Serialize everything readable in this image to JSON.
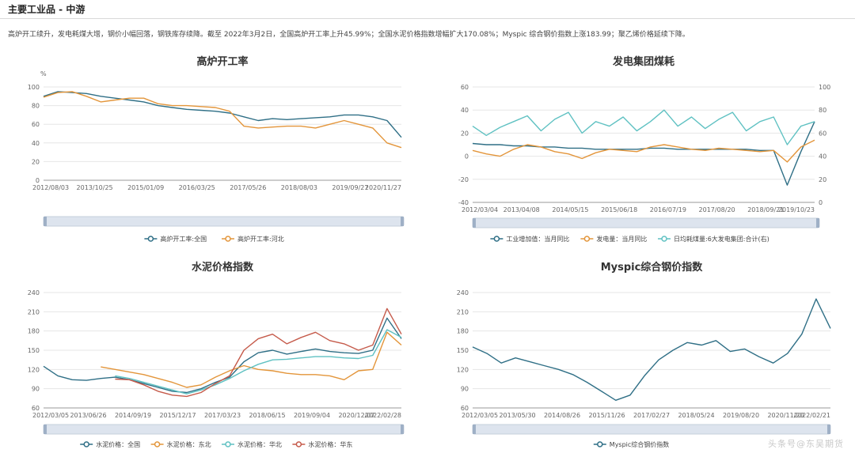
{
  "header": {
    "title": "主要工业品 - 中游"
  },
  "summary": "高炉开工续升，发电耗煤大增，钢价小幅回落，钢铁库存续降。截至 2022年3月2日，全国高炉开工率上升45.99%；全国水泥价格指数增幅扩大170.08%；Myspic 综合钢价指数上涨183.99；聚乙烯价格延续下降。",
  "watermark": "头条号@东吴期货",
  "colors": {
    "blue": "#2f6f86",
    "orange": "#e3953a",
    "cyan": "#5fc1c2",
    "red": "#c55a4a"
  },
  "chart_data": [
    {
      "type": "line",
      "title": "高炉开工率",
      "ylabel": "%",
      "ylim": [
        0,
        100
      ],
      "yticks": [
        0,
        20,
        40,
        60,
        80,
        100
      ],
      "xticks": [
        "2012/08/03",
        "2013/10/25",
        "2015/01/09",
        "2016/03/25",
        "2017/05/26",
        "2018/08/03",
        "2019/09/27",
        "2020/11/27"
      ],
      "x": [
        0,
        4,
        8,
        12,
        16,
        20,
        24,
        28,
        32,
        36,
        40,
        44,
        48,
        52,
        56,
        60,
        64,
        68,
        72,
        76,
        80,
        84,
        88,
        92,
        96,
        100
      ],
      "series": [
        {
          "name": "高炉开工率:全国",
          "color": "blue",
          "values": [
            90,
            95,
            94,
            93,
            90,
            88,
            86,
            84,
            80,
            78,
            76,
            75,
            74,
            72,
            68,
            64,
            66,
            65,
            66,
            67,
            68,
            70,
            70,
            68,
            64,
            46
          ]
        },
        {
          "name": "高炉开工率:河北",
          "color": "orange",
          "values": [
            89,
            94,
            95,
            90,
            84,
            86,
            88,
            88,
            82,
            80,
            80,
            79,
            78,
            74,
            58,
            56,
            57,
            58,
            58,
            56,
            60,
            64,
            60,
            56,
            40,
            35
          ]
        }
      ]
    },
    {
      "type": "line",
      "title": "发电集团煤耗",
      "ylim": [
        -40,
        60
      ],
      "yticks": [
        -40,
        -20,
        0,
        20,
        40,
        60
      ],
      "y2lim": [
        0,
        100
      ],
      "y2ticks": [
        0,
        20,
        40,
        60,
        80,
        100
      ],
      "xticks": [
        "2012/03/04",
        "2013/04/08",
        "2014/05/15",
        "2015/06/18",
        "2016/07/19",
        "2017/08/20",
        "2018/09/21",
        "2019/10/23"
      ],
      "x": [
        0,
        4,
        8,
        12,
        16,
        20,
        24,
        28,
        32,
        36,
        40,
        44,
        48,
        52,
        56,
        60,
        64,
        68,
        72,
        76,
        80,
        84,
        88,
        92,
        96,
        100
      ],
      "series": [
        {
          "name": "工业增加值：当月同比",
          "color": "blue",
          "axis": "left",
          "values": [
            11,
            10,
            10,
            9,
            9,
            8,
            8,
            7,
            7,
            6,
            6,
            6,
            6,
            7,
            7,
            6,
            6,
            6,
            6,
            6,
            6,
            5,
            5,
            -25,
            4,
            30
          ]
        },
        {
          "name": "发电量：当月同比",
          "color": "orange",
          "axis": "left",
          "values": [
            5,
            2,
            0,
            6,
            10,
            8,
            4,
            2,
            -2,
            3,
            6,
            5,
            4,
            8,
            10,
            8,
            6,
            5,
            7,
            6,
            5,
            4,
            5,
            -5,
            8,
            14
          ]
        },
        {
          "name": "日均耗煤量:6大发电集团:合计(右)",
          "color": "cyan",
          "axis": "right",
          "values": [
            66,
            58,
            65,
            70,
            75,
            62,
            72,
            78,
            60,
            70,
            66,
            74,
            62,
            70,
            80,
            66,
            74,
            64,
            72,
            78,
            62,
            70,
            74,
            50,
            66,
            70
          ]
        }
      ]
    },
    {
      "type": "line",
      "title": "水泥价格指数",
      "ylim": [
        60,
        240
      ],
      "yticks": [
        60,
        90,
        120,
        150,
        180,
        210,
        240
      ],
      "xticks": [
        "2012/03/05",
        "2013/06/26",
        "2014/09/19",
        "2015/12/17",
        "2017/03/23",
        "2018/06/15",
        "2019/09/04",
        "2020/12/07",
        "2022/02/28"
      ],
      "x": [
        0,
        4,
        8,
        12,
        16,
        20,
        24,
        28,
        32,
        36,
        40,
        44,
        48,
        52,
        56,
        60,
        64,
        68,
        72,
        76,
        80,
        84,
        88,
        92,
        96,
        100
      ],
      "series": [
        {
          "name": "水泥价格：全国",
          "color": "blue",
          "values": [
            125,
            110,
            104,
            103,
            106,
            108,
            104,
            98,
            92,
            86,
            84,
            90,
            100,
            108,
            132,
            146,
            150,
            144,
            148,
            152,
            148,
            146,
            145,
            150,
            200,
            168
          ]
        },
        {
          "name": "水泥价格：东北",
          "color": "orange",
          "values": [
            null,
            null,
            null,
            null,
            124,
            120,
            116,
            112,
            106,
            100,
            92,
            96,
            108,
            118,
            126,
            120,
            118,
            114,
            112,
            112,
            110,
            104,
            118,
            120,
            178,
            158
          ]
        },
        {
          "name": "水泥价格：华北",
          "color": "cyan",
          "values": [
            null,
            null,
            null,
            null,
            null,
            110,
            106,
            100,
            94,
            88,
            82,
            88,
            96,
            106,
            118,
            128,
            135,
            136,
            138,
            140,
            140,
            138,
            137,
            142,
            182,
            170
          ]
        },
        {
          "name": "水泥价格：华东",
          "color": "red",
          "values": [
            null,
            null,
            null,
            null,
            null,
            105,
            104,
            96,
            86,
            80,
            78,
            84,
            98,
            110,
            150,
            168,
            175,
            160,
            170,
            178,
            165,
            160,
            150,
            158,
            215,
            175
          ]
        }
      ]
    },
    {
      "type": "line",
      "title": "Myspic综合钢价指数",
      "ylim": [
        60,
        240
      ],
      "yticks": [
        60,
        90,
        120,
        150,
        180,
        210,
        240
      ],
      "xticks": [
        "2012/03/05",
        "2013/05/30",
        "2014/08/26",
        "2015/11/26",
        "2017/02/27",
        "2018/05/24",
        "2019/08/20",
        "2020/11/20",
        "2022/02/21"
      ],
      "x": [
        0,
        4,
        8,
        12,
        16,
        20,
        24,
        28,
        32,
        36,
        40,
        44,
        48,
        52,
        56,
        60,
        64,
        68,
        72,
        76,
        80,
        84,
        88,
        92,
        96,
        100
      ],
      "series": [
        {
          "name": "Myspic综合钢价指数",
          "color": "blue",
          "values": [
            155,
            145,
            130,
            138,
            132,
            126,
            120,
            112,
            100,
            86,
            72,
            80,
            110,
            135,
            150,
            162,
            158,
            165,
            148,
            152,
            140,
            130,
            145,
            175,
            230,
            184
          ]
        }
      ]
    }
  ]
}
